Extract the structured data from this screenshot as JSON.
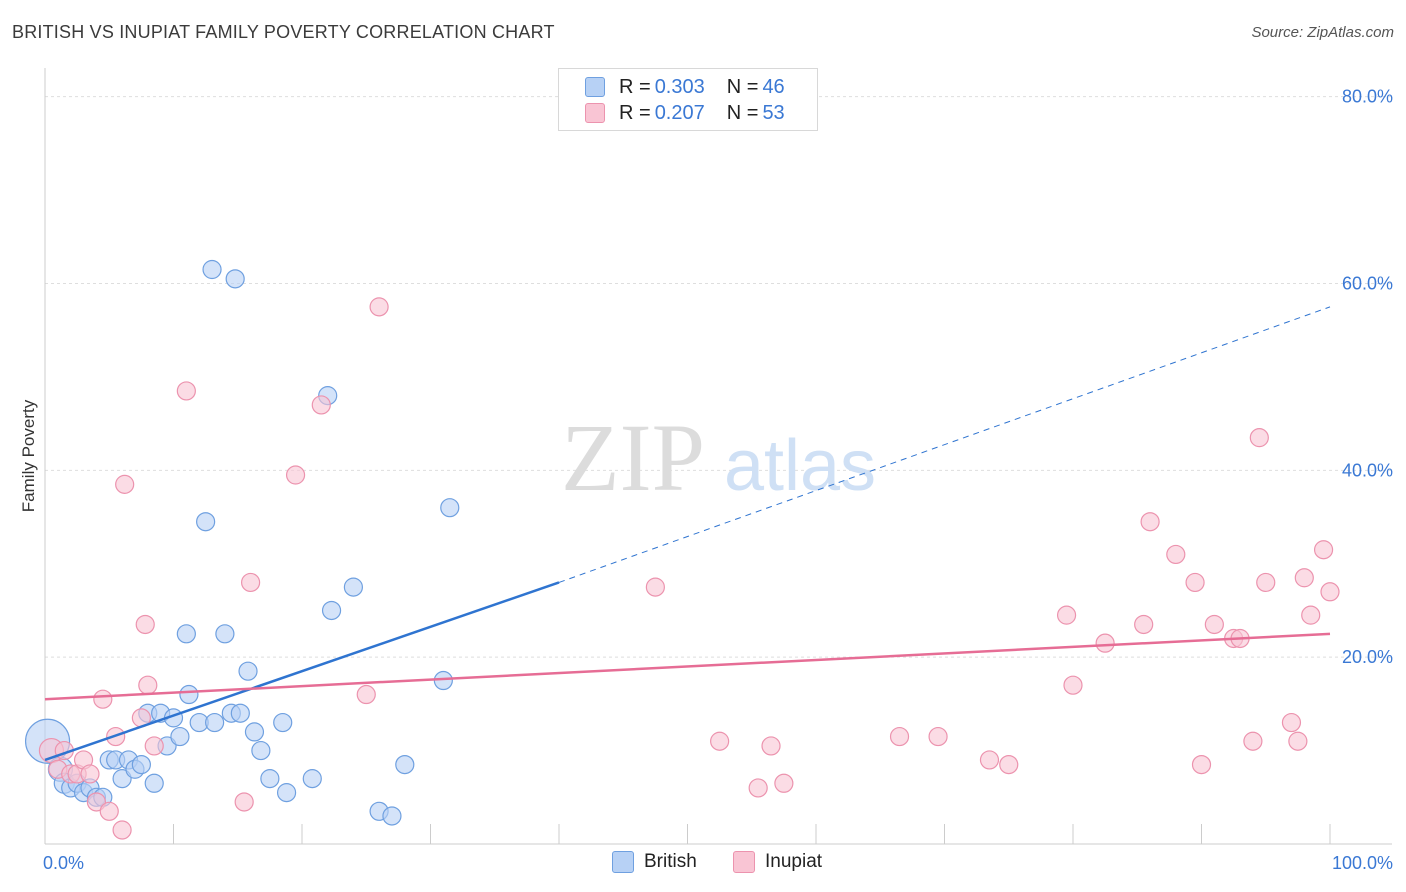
{
  "title": "BRITISH VS INUPIAT FAMILY POVERTY CORRELATION CHART",
  "source": "Source: ZipAtlas.com",
  "watermark": {
    "zip": "ZIP",
    "atlas": "atlas"
  },
  "colors": {
    "british_fill": "#b7d1f5",
    "british_stroke": "#6fa0e0",
    "british_line": "#2f74d0",
    "inupiat_fill": "#f9c5d4",
    "inupiat_stroke": "#ec93ae",
    "inupiat_line": "#e66d95",
    "tick_label": "#3a78d4",
    "grid": "#dedede"
  },
  "legend": {
    "british": {
      "r_label": "R = ",
      "r": "0.303",
      "n_label": "N = ",
      "n": "46"
    },
    "inupiat": {
      "r_label": "R = ",
      "r": "0.207",
      "n_label": "N = ",
      "n": "53"
    }
  },
  "chart_data": {
    "type": "scatter",
    "ylabel": "Family Poverty",
    "xlim": [
      0,
      100
    ],
    "ylim": [
      0,
      82
    ],
    "x_tick_labels": [
      {
        "value": 0,
        "label": "0.0%"
      },
      {
        "value": 100,
        "label": "100.0%"
      }
    ],
    "y_tick_labels": [
      {
        "value": 20,
        "label": "20.0%"
      },
      {
        "value": 40,
        "label": "40.0%"
      },
      {
        "value": 60,
        "label": "60.0%"
      },
      {
        "value": 80,
        "label": "80.0%"
      }
    ],
    "grid": true,
    "legend_position": "top-center",
    "series": [
      {
        "name": "British",
        "trend": {
          "x0": 0,
          "y0": 9.0,
          "x1": 40,
          "y1": 28.0,
          "dashed_to_x": 100,
          "dashed_to_y": 57.5
        },
        "points": [
          [
            0.2,
            11.0,
            22
          ],
          [
            1.2,
            8.0,
            12
          ],
          [
            1.5,
            6.5,
            10
          ],
          [
            2.0,
            6.0,
            9
          ],
          [
            2.5,
            6.5,
            9
          ],
          [
            3.0,
            5.5,
            9
          ],
          [
            3.5,
            6.0,
            9
          ],
          [
            4.0,
            5.0,
            9
          ],
          [
            4.5,
            5.0,
            9
          ],
          [
            5.0,
            9.0,
            9
          ],
          [
            5.5,
            9.0,
            9
          ],
          [
            6.0,
            7.0,
            9
          ],
          [
            6.5,
            9.0,
            9
          ],
          [
            7.0,
            8.0,
            9
          ],
          [
            7.5,
            8.5,
            9
          ],
          [
            8.0,
            14.0,
            9
          ],
          [
            8.5,
            6.5,
            9
          ],
          [
            9.0,
            14.0,
            9
          ],
          [
            9.5,
            10.5,
            9
          ],
          [
            10.0,
            13.5,
            9
          ],
          [
            10.5,
            11.5,
            9
          ],
          [
            11.0,
            22.5,
            9
          ],
          [
            11.2,
            16.0,
            9
          ],
          [
            12.0,
            13.0,
            9
          ],
          [
            12.5,
            34.5,
            9
          ],
          [
            13.0,
            61.5,
            9
          ],
          [
            13.2,
            13.0,
            9
          ],
          [
            14.0,
            22.5,
            9
          ],
          [
            14.5,
            14.0,
            9
          ],
          [
            14.8,
            60.5,
            9
          ],
          [
            15.2,
            14.0,
            9
          ],
          [
            15.8,
            18.5,
            9
          ],
          [
            16.3,
            12.0,
            9
          ],
          [
            16.8,
            10.0,
            9
          ],
          [
            17.5,
            7.0,
            9
          ],
          [
            18.5,
            13.0,
            9
          ],
          [
            18.8,
            5.5,
            9
          ],
          [
            20.8,
            7.0,
            9
          ],
          [
            22.0,
            48.0,
            9
          ],
          [
            22.3,
            25.0,
            9
          ],
          [
            24.0,
            27.5,
            9
          ],
          [
            26.0,
            3.5,
            9
          ],
          [
            27.0,
            3.0,
            9
          ],
          [
            28.0,
            8.5,
            9
          ],
          [
            31.0,
            17.5,
            9
          ],
          [
            31.5,
            36.0,
            9
          ]
        ]
      },
      {
        "name": "Inupiat",
        "trend": {
          "x0": 0,
          "y0": 15.5,
          "x1": 100,
          "y1": 22.5
        },
        "points": [
          [
            0.5,
            10.0,
            12
          ],
          [
            1.0,
            8.0,
            9
          ],
          [
            1.5,
            10.0,
            9
          ],
          [
            2.0,
            7.5,
            9
          ],
          [
            2.5,
            7.5,
            9
          ],
          [
            3.0,
            9.0,
            9
          ],
          [
            3.5,
            7.5,
            9
          ],
          [
            4.0,
            4.5,
            9
          ],
          [
            4.5,
            15.5,
            9
          ],
          [
            5.0,
            3.5,
            9
          ],
          [
            5.5,
            11.5,
            9
          ],
          [
            6.0,
            1.5,
            9
          ],
          [
            6.2,
            38.5,
            9
          ],
          [
            7.5,
            13.5,
            9
          ],
          [
            7.8,
            23.5,
            9
          ],
          [
            8.0,
            17.0,
            9
          ],
          [
            8.5,
            10.5,
            9
          ],
          [
            11.0,
            48.5,
            9
          ],
          [
            15.5,
            4.5,
            9
          ],
          [
            16.0,
            28.0,
            9
          ],
          [
            19.5,
            39.5,
            9
          ],
          [
            21.5,
            47.0,
            9
          ],
          [
            25.0,
            16.0,
            9
          ],
          [
            26.0,
            57.5,
            9
          ],
          [
            47.5,
            27.5,
            9
          ],
          [
            52.5,
            11.0,
            9
          ],
          [
            55.5,
            6.0,
            9
          ],
          [
            56.5,
            10.5,
            9
          ],
          [
            57.5,
            6.5,
            9
          ],
          [
            66.5,
            11.5,
            9
          ],
          [
            69.5,
            11.5,
            9
          ],
          [
            73.5,
            9.0,
            9
          ],
          [
            75.0,
            8.5,
            9
          ],
          [
            79.5,
            24.5,
            9
          ],
          [
            80.0,
            17.0,
            9
          ],
          [
            82.5,
            21.5,
            9
          ],
          [
            85.5,
            23.5,
            9
          ],
          [
            86.0,
            34.5,
            9
          ],
          [
            88.0,
            31.0,
            9
          ],
          [
            89.5,
            28.0,
            9
          ],
          [
            90.0,
            8.5,
            9
          ],
          [
            91.0,
            23.5,
            9
          ],
          [
            92.5,
            22.0,
            9
          ],
          [
            93.0,
            22.0,
            9
          ],
          [
            94.0,
            11.0,
            9
          ],
          [
            94.5,
            43.5,
            9
          ],
          [
            95.0,
            28.0,
            9
          ],
          [
            97.0,
            13.0,
            9
          ],
          [
            97.5,
            11.0,
            9
          ],
          [
            98.0,
            28.5,
            9
          ],
          [
            98.5,
            24.5,
            9
          ],
          [
            99.5,
            31.5,
            9
          ],
          [
            100.0,
            27.0,
            9
          ]
        ]
      }
    ]
  }
}
